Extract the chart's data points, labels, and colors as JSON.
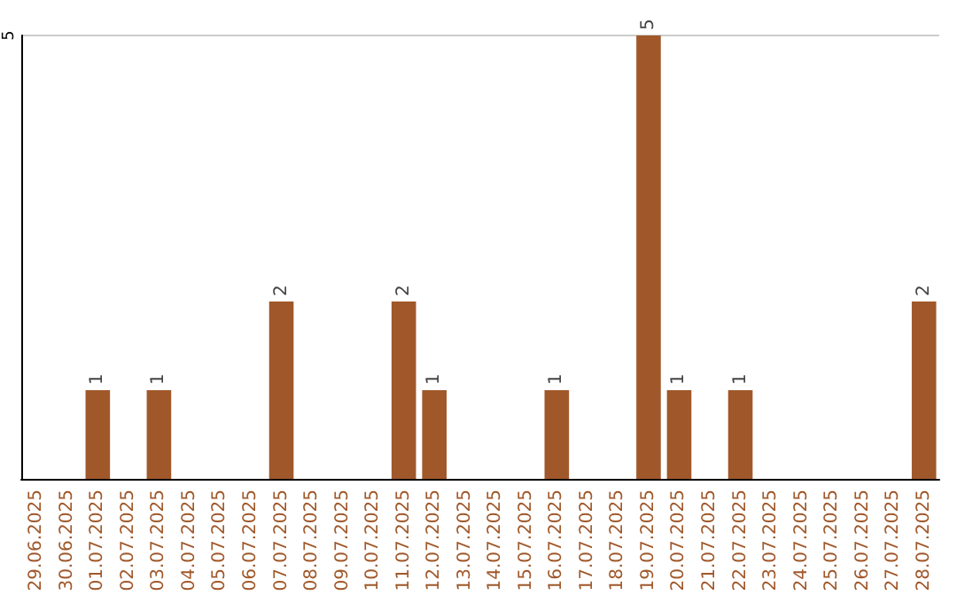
{
  "chart_data": {
    "type": "bar",
    "categories": [
      "29.06.2025",
      "30.06.2025",
      "01.07.2025",
      "02.07.2025",
      "03.07.2025",
      "04.07.2025",
      "05.07.2025",
      "06.07.2025",
      "07.07.2025",
      "08.07.2025",
      "09.07.2025",
      "10.07.2025",
      "11.07.2025",
      "12.07.2025",
      "13.07.2025",
      "14.07.2025",
      "15.07.2025",
      "16.07.2025",
      "17.07.2025",
      "18.07.2025",
      "19.07.2025",
      "20.07.2025",
      "21.07.2025",
      "22.07.2025",
      "23.07.2025",
      "24.07.2025",
      "25.07.2025",
      "26.07.2025",
      "27.07.2025",
      "28.07.2025"
    ],
    "values": [
      0,
      0,
      1,
      0,
      1,
      0,
      0,
      0,
      2,
      0,
      0,
      0,
      2,
      1,
      0,
      0,
      0,
      1,
      0,
      0,
      5,
      1,
      0,
      1,
      0,
      0,
      0,
      0,
      0,
      2
    ],
    "value_labels": [
      null,
      null,
      "1",
      null,
      "1",
      null,
      null,
      null,
      "2",
      null,
      null,
      null,
      "2",
      "1",
      null,
      null,
      null,
      "1",
      null,
      null,
      "5",
      "1",
      null,
      "1",
      null,
      null,
      null,
      null,
      null,
      "2"
    ],
    "color": "#a0582a",
    "ylim": [
      0,
      5
    ],
    "yticks": [
      5
    ]
  }
}
